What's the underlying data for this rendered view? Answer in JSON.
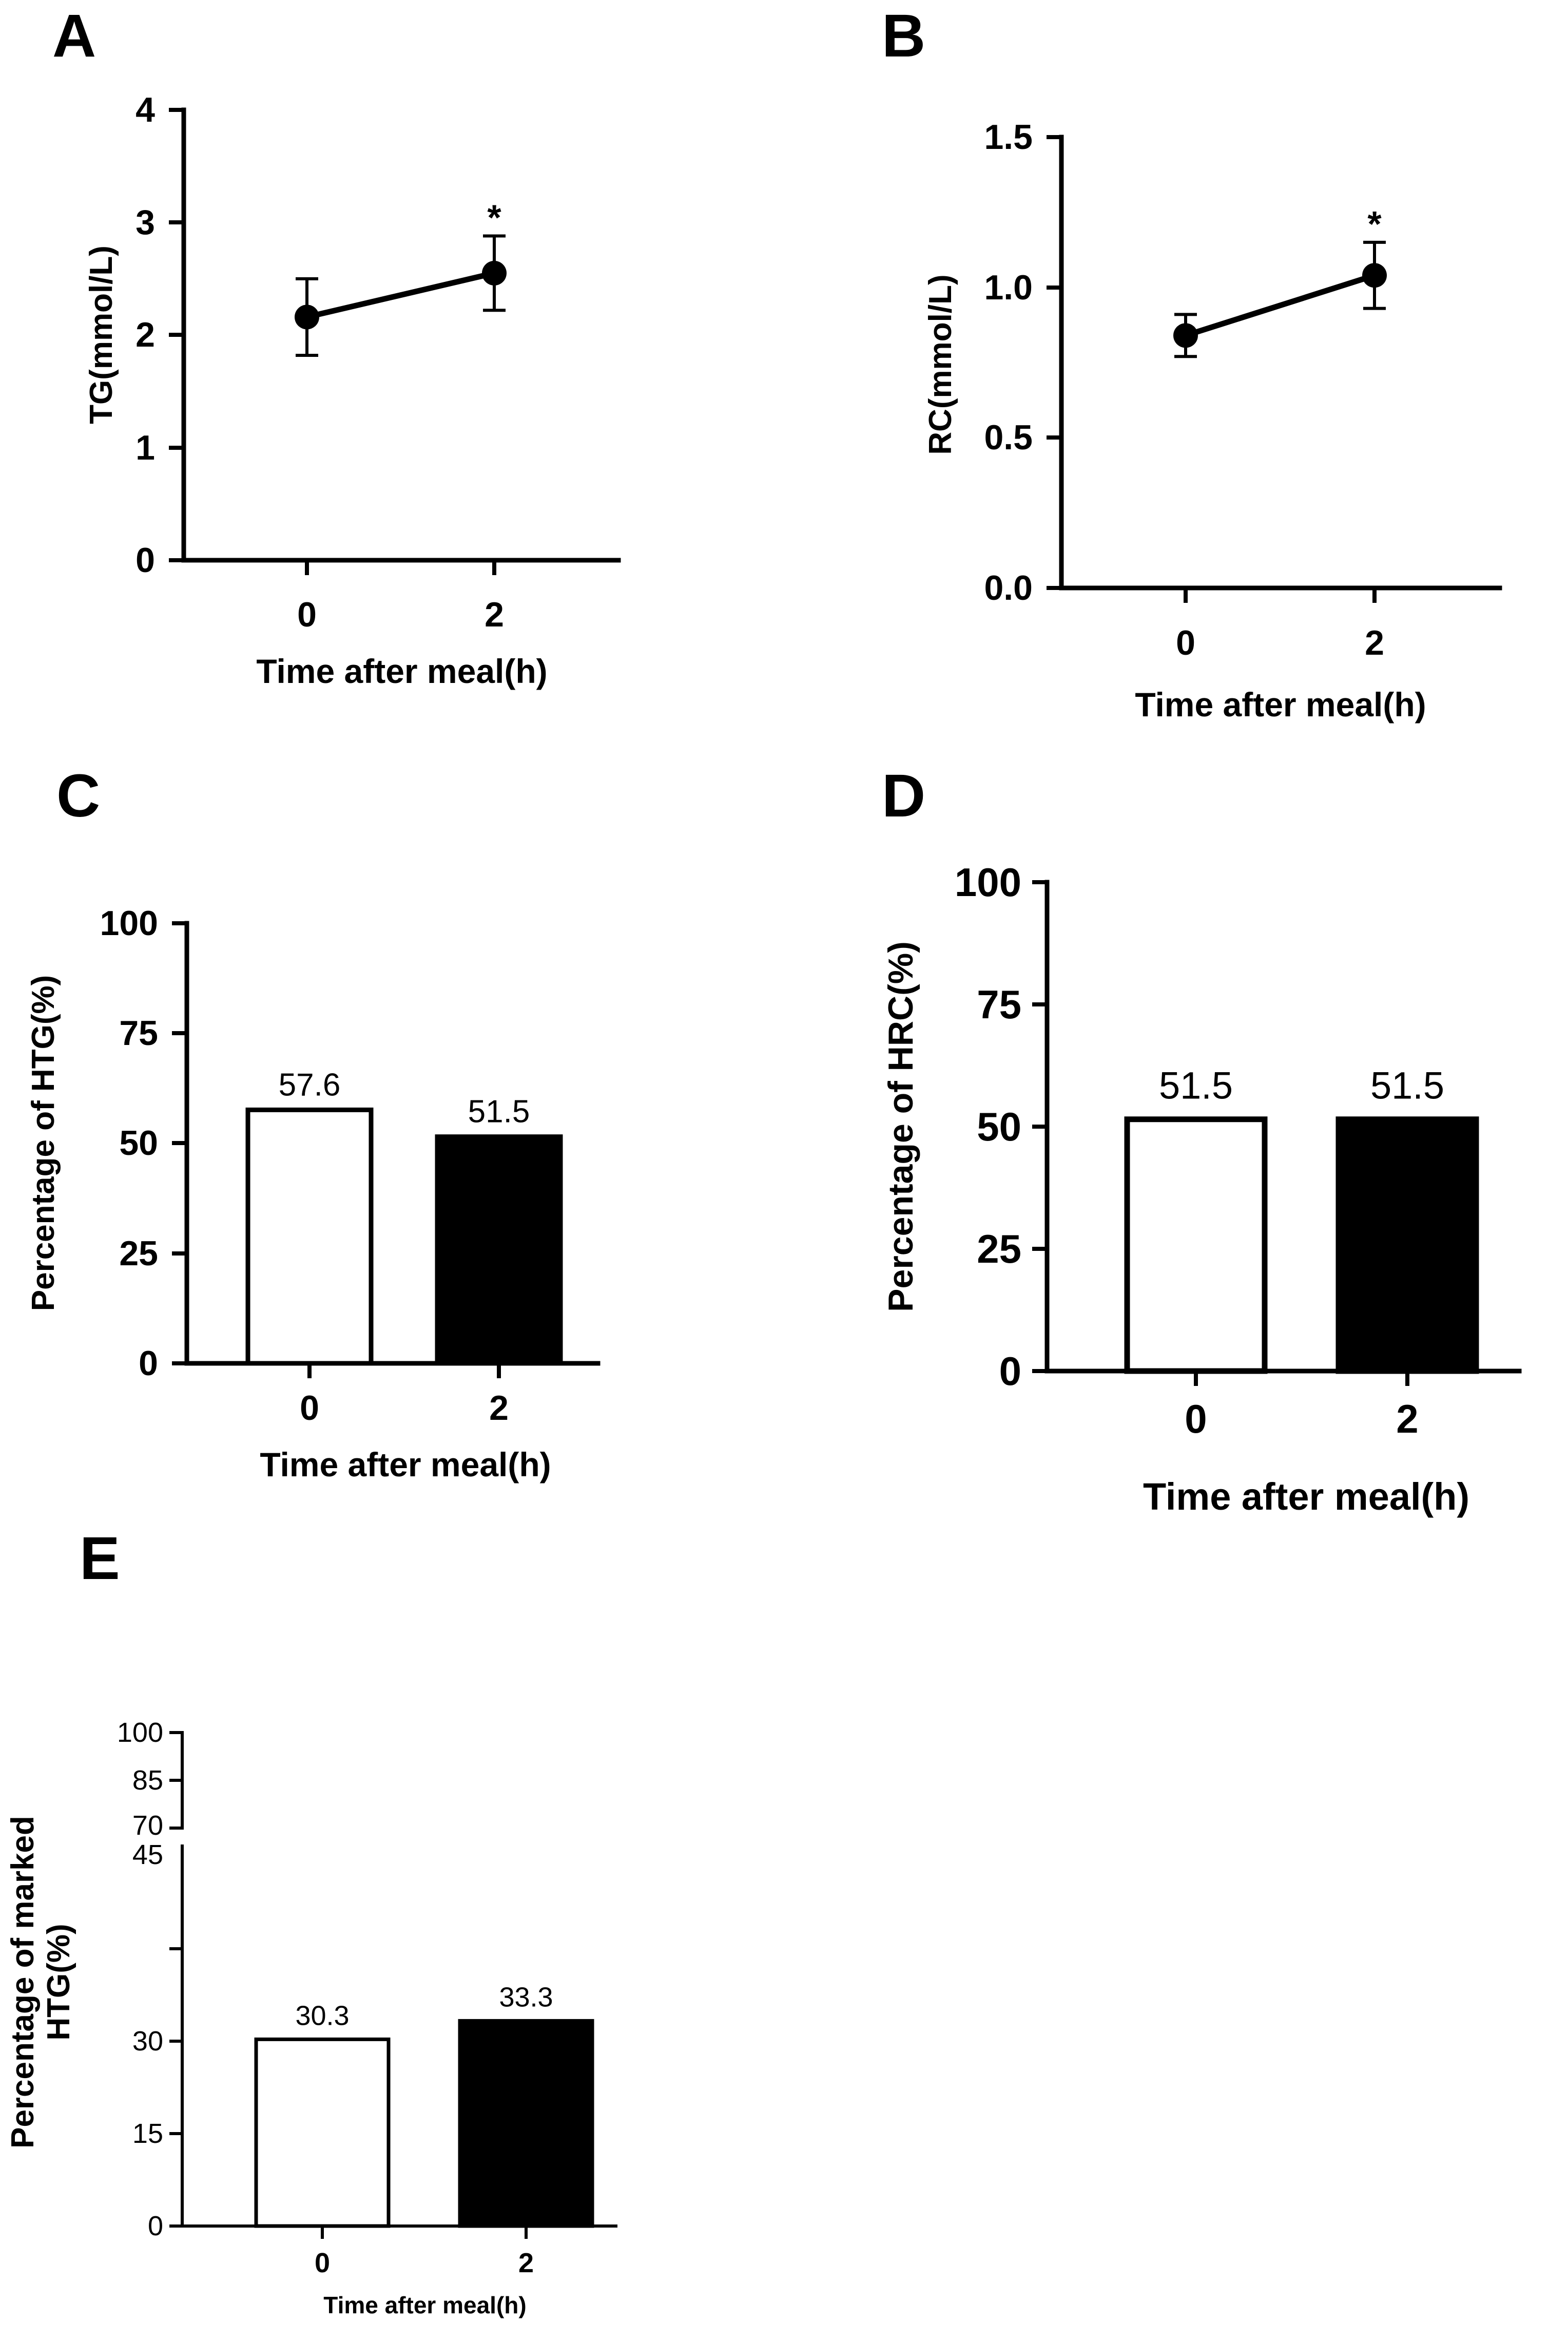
{
  "chart_data": [
    {
      "panel": "A",
      "type": "line",
      "xlabel": "Time after meal(h)",
      "ylabel": "TG(mmol/L)",
      "categories": [
        "0",
        "2"
      ],
      "values": [
        2.16,
        2.55
      ],
      "error": [
        0.34,
        0.33
      ],
      "annotations": [
        {
          "category": "2",
          "text": "*"
        }
      ],
      "ylim": [
        0,
        4
      ],
      "yticks": [
        "0",
        "1",
        "2",
        "3",
        "4"
      ],
      "ytick_values": [
        0,
        1,
        2,
        3,
        4
      ]
    },
    {
      "panel": "B",
      "type": "line",
      "xlabel": "Time after meal(h)",
      "ylabel": "RC(mmol/L)",
      "categories": [
        "0",
        "2"
      ],
      "values": [
        0.84,
        1.04
      ],
      "error": [
        0.07,
        0.11
      ],
      "annotations": [
        {
          "category": "2",
          "text": "*"
        }
      ],
      "ylim": [
        0,
        1.5
      ],
      "yticks": [
        "0.0",
        "0.5",
        "1.0",
        "1.5"
      ],
      "ytick_values": [
        0,
        0.5,
        1.0,
        1.5
      ]
    },
    {
      "panel": "C",
      "type": "bar",
      "xlabel": "Time after meal(h)",
      "ylabel": "Percentage of HTG(%)",
      "categories": [
        "0",
        "2"
      ],
      "values": [
        57.6,
        51.5
      ],
      "data_labels": [
        "57.6",
        "51.5"
      ],
      "bar_colors": [
        "#ffffff",
        "#000000"
      ],
      "ylim": [
        0,
        100
      ],
      "yticks": [
        "0",
        "25",
        "50",
        "75",
        "100"
      ],
      "ytick_values": [
        0,
        25,
        50,
        75,
        100
      ]
    },
    {
      "panel": "D",
      "type": "bar",
      "xlabel": "Time after meal(h)",
      "ylabel": "Percentage of HRC(%)",
      "categories": [
        "0",
        "2"
      ],
      "values": [
        51.5,
        51.5
      ],
      "data_labels": [
        "51.5",
        "51.5"
      ],
      "bar_colors": [
        "#ffffff",
        "#000000"
      ],
      "ylim": [
        0,
        100
      ],
      "yticks": [
        "0",
        "25",
        "50",
        "75",
        "100"
      ],
      "ytick_values": [
        0,
        25,
        50,
        75,
        100
      ]
    },
    {
      "panel": "E",
      "type": "bar",
      "xlabel": "Time after meal(h)",
      "ylabel_lines": [
        "Percentage of marked",
        "HTG(%)"
      ],
      "categories": [
        "0",
        "2"
      ],
      "values": [
        30.3,
        33.3
      ],
      "data_labels": [
        "30.3",
        "33.3"
      ],
      "bar_colors": [
        "#ffffff",
        "#000000"
      ],
      "ylim": [
        0,
        100
      ],
      "axis_break": [
        45,
        70
      ],
      "yticks": [
        "0",
        "15",
        "30",
        "45",
        "70",
        "85",
        "100"
      ],
      "ytick_values": [
        0,
        15,
        30,
        45,
        70,
        85,
        100
      ]
    }
  ]
}
